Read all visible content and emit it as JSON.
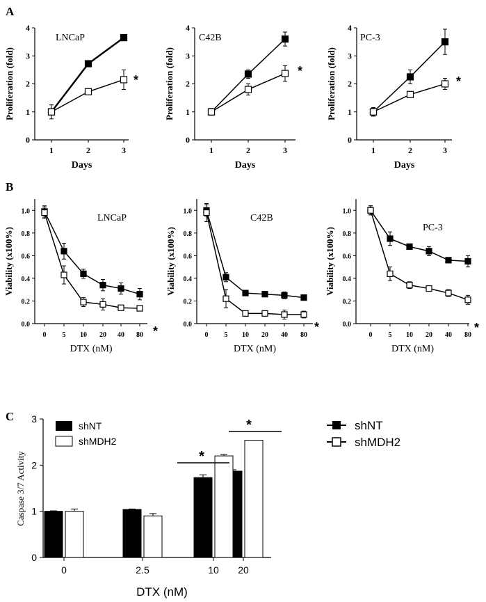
{
  "panel_labels": [
    "A",
    "B",
    "C"
  ],
  "legend": {
    "shNT": "shNT",
    "shMDH2": "shMDH2"
  },
  "chart_data": [
    {
      "type": "line",
      "panel": "A",
      "title": "LNCaP",
      "xlabel": "Days",
      "ylabel": "Proliferation (fold)",
      "categories": [
        "1",
        "2",
        "3"
      ],
      "yticks": [
        "0",
        "1",
        "2",
        "3",
        "4"
      ],
      "ylim": [
        0,
        4
      ],
      "series": [
        {
          "name": "shNT",
          "values": [
            1.0,
            2.72,
            3.65
          ],
          "errors": [
            0.1,
            0.05,
            0.05
          ]
        },
        {
          "name": "shMDH2",
          "values": [
            1.0,
            1.72,
            2.15
          ],
          "errors": [
            0.25,
            0.1,
            0.35
          ]
        }
      ],
      "annotations": [
        "*"
      ]
    },
    {
      "type": "line",
      "panel": "A",
      "title": "C42B",
      "xlabel": "Days",
      "ylabel": "Proliferation (fold)",
      "categories": [
        "1",
        "2",
        "3"
      ],
      "yticks": [
        "0",
        "1",
        "2",
        "3",
        "4"
      ],
      "ylim": [
        0,
        4
      ],
      "series": [
        {
          "name": "shNT",
          "values": [
            1.0,
            2.35,
            3.6
          ],
          "errors": [
            0.12,
            0.15,
            0.25
          ]
        },
        {
          "name": "shMDH2",
          "values": [
            1.0,
            1.8,
            2.37
          ],
          "errors": [
            0.12,
            0.2,
            0.28
          ]
        }
      ],
      "annotations": [
        "*"
      ]
    },
    {
      "type": "line",
      "panel": "A",
      "title": "PC-3",
      "xlabel": "Days",
      "ylabel": "Proliferation (fold)",
      "categories": [
        "1",
        "2",
        "3"
      ],
      "yticks": [
        "0",
        "1",
        "2",
        "3",
        "4"
      ],
      "ylim": [
        0,
        4
      ],
      "series": [
        {
          "name": "shNT",
          "values": [
            1.0,
            2.25,
            3.5
          ],
          "errors": [
            0.15,
            0.25,
            0.45
          ]
        },
        {
          "name": "shMDH2",
          "values": [
            1.0,
            1.62,
            2.0
          ],
          "errors": [
            0.15,
            0.08,
            0.2
          ]
        }
      ],
      "annotations": [
        "*"
      ]
    },
    {
      "type": "line",
      "panel": "B",
      "title": "LNCaP",
      "xlabel": "DTX (nM)",
      "ylabel": "Viability (x100%)",
      "categories": [
        "0",
        "5",
        "10",
        "20",
        "40",
        "80"
      ],
      "yticks": [
        "0.0",
        "0.2",
        "0.4",
        "0.6",
        "0.8",
        "1.0"
      ],
      "ylim": [
        0,
        1.1
      ],
      "series": [
        {
          "name": "shNT",
          "values": [
            0.99,
            0.64,
            0.44,
            0.34,
            0.31,
            0.26
          ],
          "errors": [
            0.05,
            0.07,
            0.04,
            0.05,
            0.05,
            0.05
          ]
        },
        {
          "name": "shMDH2",
          "values": [
            0.98,
            0.43,
            0.19,
            0.17,
            0.14,
            0.135
          ],
          "errors": [
            0.05,
            0.08,
            0.04,
            0.05,
            0.02,
            0.02
          ]
        }
      ],
      "annotations": [
        "*"
      ]
    },
    {
      "type": "line",
      "panel": "B",
      "title": "C42B",
      "xlabel": "DTX (nM)",
      "ylabel": "Viability (x100%)",
      "categories": [
        "0",
        "5",
        "10",
        "20",
        "40",
        "80"
      ],
      "yticks": [
        "0.0",
        "0.2",
        "0.4",
        "0.6",
        "0.8",
        "1.0"
      ],
      "ylim": [
        0,
        1.1
      ],
      "series": [
        {
          "name": "shNT",
          "values": [
            1.0,
            0.41,
            0.27,
            0.26,
            0.25,
            0.23
          ],
          "errors": [
            0.05,
            0.04,
            0.02,
            0.02,
            0.03,
            0.02
          ]
        },
        {
          "name": "shMDH2",
          "values": [
            0.98,
            0.22,
            0.09,
            0.09,
            0.08,
            0.08
          ],
          "errors": [
            0.08,
            0.08,
            0.02,
            0.02,
            0.04,
            0.03
          ]
        }
      ],
      "annotations": [
        "*"
      ]
    },
    {
      "type": "line",
      "panel": "B",
      "title": "PC-3",
      "xlabel": "DTX (nM)",
      "ylabel": "Viability (x100%)",
      "categories": [
        "0",
        "5",
        "10",
        "20",
        "40",
        "80"
      ],
      "yticks": [
        "0.0",
        "0.2",
        "0.4",
        "0.6",
        "0.8",
        "1.0"
      ],
      "ylim": [
        0,
        1.1
      ],
      "series": [
        {
          "name": "shNT",
          "values": [
            1.0,
            0.75,
            0.68,
            0.64,
            0.56,
            0.55
          ],
          "errors": [
            0.04,
            0.06,
            0.02,
            0.04,
            0.02,
            0.05
          ]
        },
        {
          "name": "shMDH2",
          "values": [
            1.0,
            0.44,
            0.34,
            0.31,
            0.27,
            0.21
          ],
          "errors": [
            0.04,
            0.06,
            0.03,
            0.02,
            0.03,
            0.04
          ]
        }
      ],
      "annotations": [
        "*"
      ]
    },
    {
      "type": "bar",
      "panel": "C",
      "title": "",
      "xlabel": "DTX (nM)",
      "ylabel": "Caspase 3/7 Activity",
      "categories": [
        "0",
        "2.5",
        "10",
        "20"
      ],
      "yticks": [
        "0",
        "1",
        "2",
        "3"
      ],
      "ylim": [
        0,
        3
      ],
      "series": [
        {
          "name": "shNT",
          "values": [
            1.0,
            1.04,
            1.73,
            1.87
          ],
          "errors": [
            0.01,
            0.01,
            0.06,
            0.03
          ]
        },
        {
          "name": "shMDH2",
          "values": [
            1.0,
            0.9,
            2.2,
            2.54
          ],
          "errors": [
            0.05,
            0.05,
            0.03,
            0.0
          ]
        }
      ],
      "annotations": [
        "*",
        "*"
      ],
      "legend": [
        "shNT",
        "shMDH2"
      ]
    }
  ]
}
